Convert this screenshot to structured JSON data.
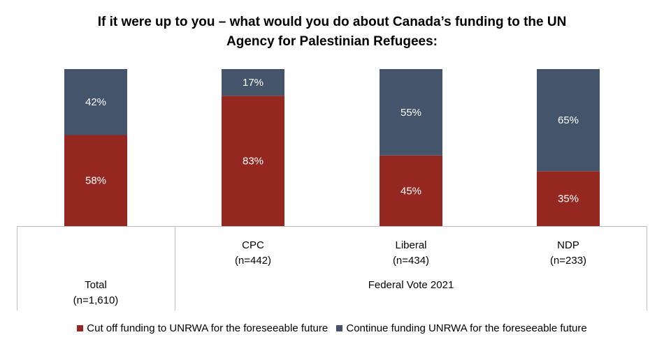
{
  "chart_data": {
    "type": "bar",
    "stacked": true,
    "title": [
      "If it were up to you – what would you do about Canada’s funding to the UN",
      "Agency for Palestinian Refugees:"
    ],
    "categories": [
      {
        "name": "Total",
        "n": "(n=1,610)"
      },
      {
        "name": "CPC",
        "n": "(n=442)"
      },
      {
        "name": "Liberal",
        "n": "(n=434)"
      },
      {
        "name": "NDP",
        "n": "(n=233)"
      }
    ],
    "group_label": "Federal Vote 2021",
    "series": [
      {
        "name": "Cut off funding to UNRWA for the foreseeable future",
        "color": "#942720",
        "values": [
          58,
          83,
          45,
          35
        ]
      },
      {
        "name": "Continue funding UNRWA for the foreseeable future",
        "color": "#44546a",
        "values": [
          42,
          17,
          55,
          65
        ]
      }
    ],
    "value_suffix": "%",
    "ylim": [
      0,
      100
    ],
    "grid": false,
    "legend_position": "bottom"
  }
}
